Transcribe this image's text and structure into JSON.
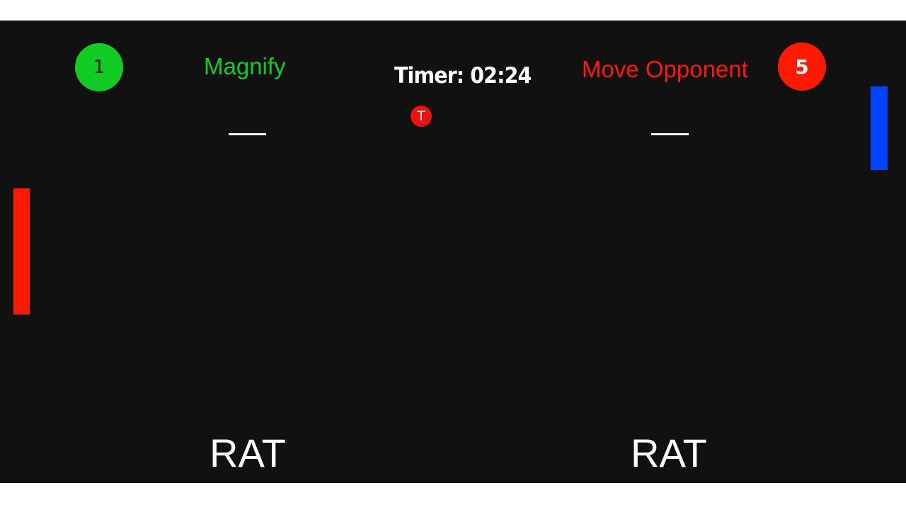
{
  "colors": {
    "left_accent": "#11cc22",
    "right_accent": "#ff1a00",
    "left_paddle": "#ff1a00",
    "right_paddle": "#0044ff",
    "ball": "#ee1111"
  },
  "left_player": {
    "score": "1",
    "powerup": "Magnify",
    "placeholder_line": "",
    "name": "RAT"
  },
  "right_player": {
    "score": "5",
    "powerup": "Move Opponent",
    "placeholder_line": "",
    "name": "RAT"
  },
  "timer": {
    "text": "Timer: 02:24"
  },
  "ball": {
    "label": "T"
  }
}
